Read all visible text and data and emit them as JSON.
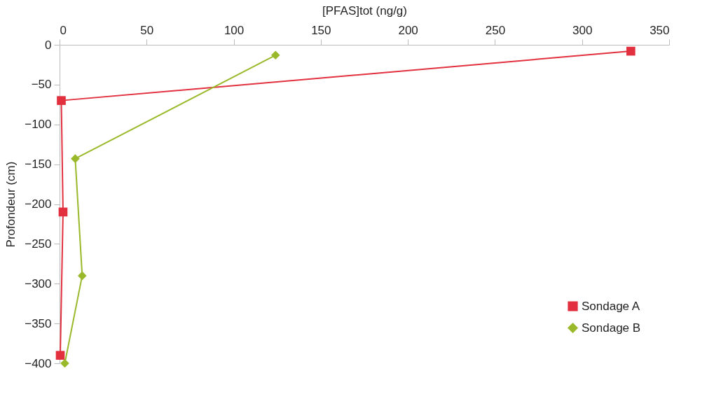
{
  "chart_data": {
    "type": "line",
    "xlabel": "[PFAS]tot (ng/g)",
    "ylabel": "Profondeur (cm)",
    "xlim": [
      0,
      350
    ],
    "xticks": [
      0,
      50,
      100,
      150,
      200,
      250,
      300,
      350
    ],
    "ylim": [
      -400,
      0
    ],
    "yticks": [
      0,
      -50,
      -100,
      -150,
      -200,
      -250,
      -300,
      -350,
      -400
    ],
    "grid": false,
    "legend": "bottom right",
    "series": [
      {
        "name": "Sondage A",
        "color": "#e2303f",
        "marker": "square",
        "x": [
          328,
          1,
          2,
          0.4
        ],
        "values": [
          -8,
          -70,
          -210,
          -390
        ]
      },
      {
        "name": "Sondage B",
        "color": "#9ab92a",
        "marker": "diamond",
        "x": [
          124,
          9,
          13,
          3
        ],
        "values": [
          -13,
          -143,
          -290,
          -400
        ]
      }
    ]
  }
}
